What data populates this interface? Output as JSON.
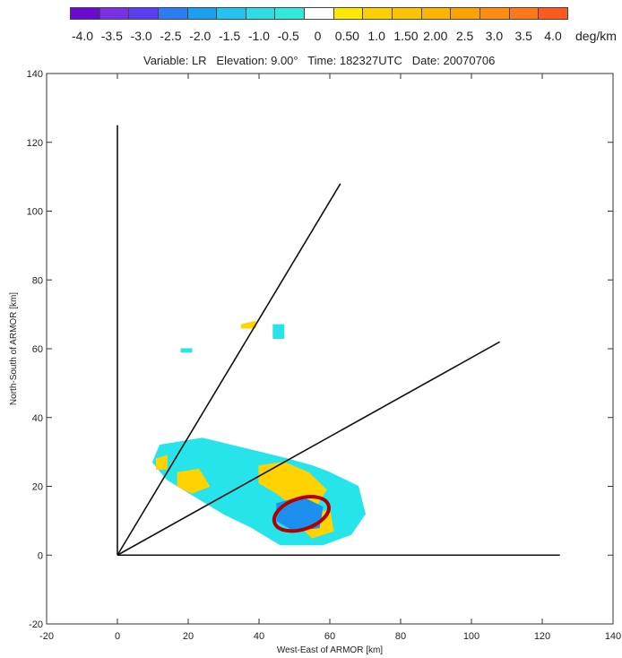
{
  "chart_data": {
    "type": "radar_ppi_image",
    "title": "Variable: LR   Elevation: 9.00°   Time: 182327UTC   Date: 20070706",
    "xlabel": "West-East of ARMOR [km]",
    "ylabel": "North-South of ARMOR [km]",
    "xlim": [
      -20,
      140
    ],
    "ylim": [
      -20,
      140
    ],
    "x_ticks": [
      -20,
      0,
      20,
      40,
      60,
      80,
      100,
      120,
      140
    ],
    "y_ticks": [
      -20,
      0,
      20,
      40,
      60,
      80,
      100,
      120,
      140
    ],
    "grid": false,
    "colorbar": {
      "unit": "deg/km",
      "labels": [
        "-4.0",
        "-3.5",
        "-3.0",
        "-2.5",
        "-2.0",
        "-1.5",
        "-1.0",
        "-0.5",
        "0",
        "0.50",
        "1.0",
        "1.50",
        "2.00",
        "2.5",
        "3.0",
        "3.5",
        "4.0"
      ],
      "colors": [
        "#6a0ad0",
        "#7a2ee6",
        "#5a3df0",
        "#2a7df4",
        "#1aa0f0",
        "#22c3ee",
        "#2ddde6",
        "#30e8dc",
        "#ffffff",
        "#ffe800",
        "#ffd000",
        "#ffc400",
        "#ffb400",
        "#ffa200",
        "#ff8c10",
        "#ff7818",
        "#ff5a1e"
      ]
    },
    "radials": [
      {
        "from": [
          0,
          0
        ],
        "to": [
          0,
          125
        ]
      },
      {
        "from": [
          0,
          0
        ],
        "to": [
          63,
          108
        ]
      },
      {
        "from": [
          0,
          0
        ],
        "to": [
          108,
          62
        ]
      },
      {
        "from": [
          0,
          0
        ],
        "to": [
          125,
          0
        ]
      }
    ],
    "highlight": {
      "shape": "ellipse",
      "center": [
        52,
        12
      ],
      "rx": 8,
      "ry": 4.5,
      "rotation_deg": -18,
      "color": "#b00000"
    },
    "echo_regions": [
      {
        "value": -1.0,
        "color": "#26e4ea",
        "points": [
          [
            12,
            32
          ],
          [
            24,
            34
          ],
          [
            36,
            31
          ],
          [
            48,
            28
          ],
          [
            55,
            26
          ],
          [
            60,
            24
          ],
          [
            68,
            20
          ],
          [
            70,
            12
          ],
          [
            66,
            6
          ],
          [
            58,
            3
          ],
          [
            46,
            3
          ],
          [
            38,
            8
          ],
          [
            30,
            12
          ],
          [
            22,
            17
          ],
          [
            14,
            22
          ],
          [
            10,
            27
          ]
        ]
      },
      {
        "value": 1.0,
        "color": "#ffd200",
        "points": [
          [
            40,
            26
          ],
          [
            47,
            27
          ],
          [
            54,
            24
          ],
          [
            59,
            19
          ],
          [
            56,
            14
          ],
          [
            50,
            14
          ],
          [
            45,
            18
          ],
          [
            40,
            21
          ]
        ]
      },
      {
        "value": 1.0,
        "color": "#ffd200",
        "points": [
          [
            17,
            24
          ],
          [
            23,
            25
          ],
          [
            26,
            20
          ],
          [
            21,
            18
          ],
          [
            17,
            20
          ]
        ]
      },
      {
        "value": 1.0,
        "color": "#ffd200",
        "points": [
          [
            53,
            12
          ],
          [
            60,
            13
          ],
          [
            61,
            7
          ],
          [
            55,
            5
          ],
          [
            52,
            8
          ]
        ]
      },
      {
        "value": 1.0,
        "color": "#ffd200",
        "points": [
          [
            11,
            28
          ],
          [
            14,
            29
          ],
          [
            14,
            25
          ],
          [
            11,
            25
          ]
        ]
      },
      {
        "value": -2.0,
        "color": "#1c8fef",
        "points": [
          [
            45,
            15
          ],
          [
            52,
            17
          ],
          [
            58,
            14
          ],
          [
            57,
            8
          ],
          [
            50,
            7
          ],
          [
            45,
            10
          ]
        ]
      },
      {
        "value": -1.0,
        "color": "#26e4ea",
        "points": [
          [
            44,
            67
          ],
          [
            47,
            67
          ],
          [
            47,
            63
          ],
          [
            44,
            63
          ]
        ]
      },
      {
        "value": 0.5,
        "color": "#ffd200",
        "points": [
          [
            35,
            67
          ],
          [
            39,
            68
          ],
          [
            39,
            66
          ],
          [
            35,
            66
          ]
        ]
      },
      {
        "value": -1.0,
        "color": "#26e4ea",
        "points": [
          [
            18,
            60
          ],
          [
            21,
            60
          ],
          [
            21,
            59
          ],
          [
            18,
            59
          ]
        ]
      }
    ]
  }
}
